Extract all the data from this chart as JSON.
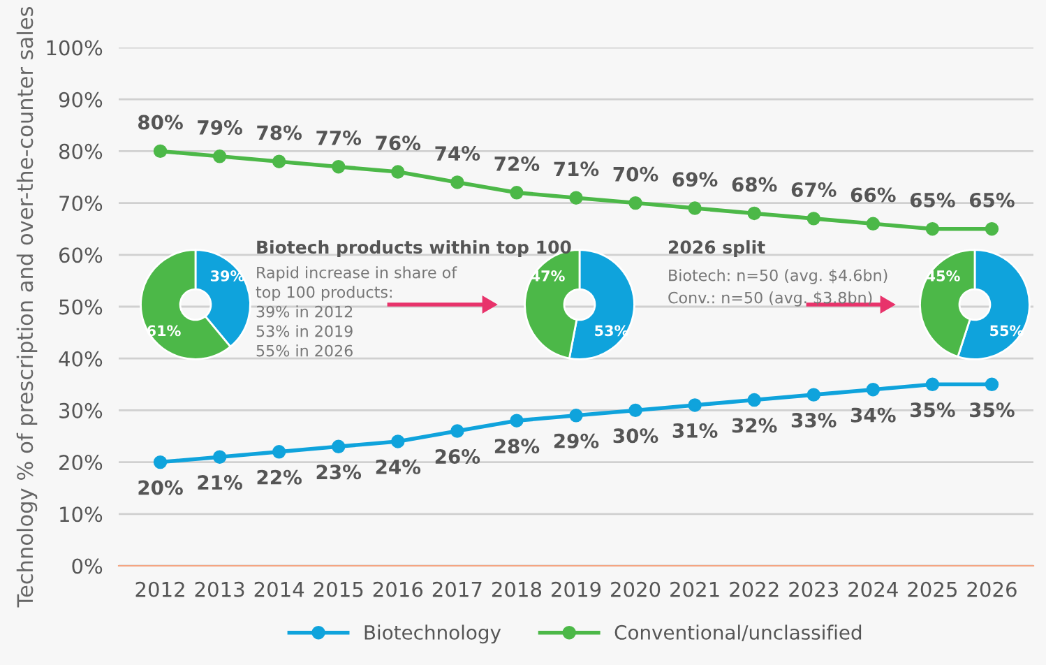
{
  "chart_data": [
    {
      "type": "line",
      "ylabel": "Technology % of prescription and over-the-counter sales",
      "categories": [
        "2012",
        "2013",
        "2014",
        "2015",
        "2016",
        "2017",
        "2018",
        "2019",
        "2020",
        "2021",
        "2022",
        "2023",
        "2024",
        "2025",
        "2026"
      ],
      "series": [
        {
          "name": "Biotechnology",
          "color": "#0fa3dc",
          "values": [
            20,
            21,
            22,
            23,
            24,
            26,
            28,
            29,
            30,
            31,
            32,
            33,
            34,
            35,
            35
          ],
          "value_labels": [
            "20%",
            "21%",
            "22%",
            "23%",
            "24%",
            "26%",
            "28%",
            "29%",
            "30%",
            "31%",
            "32%",
            "33%",
            "34%",
            "35%",
            "35%"
          ]
        },
        {
          "name": "Conventional/unclassified",
          "color": "#4cb848",
          "values": [
            80,
            79,
            78,
            77,
            76,
            74,
            72,
            71,
            70,
            69,
            68,
            67,
            66,
            65,
            65
          ],
          "value_labels": [
            "80%",
            "79%",
            "78%",
            "77%",
            "76%",
            "74%",
            "72%",
            "71%",
            "70%",
            "69%",
            "68%",
            "67%",
            "66%",
            "65%",
            "65%"
          ]
        }
      ],
      "ylim": [
        0,
        100
      ],
      "yticks": [
        {
          "value": 0,
          "label": "0%"
        },
        {
          "value": 10,
          "label": "10%"
        },
        {
          "value": 20,
          "label": "20%"
        },
        {
          "value": 30,
          "label": "30%"
        },
        {
          "value": 40,
          "label": "40%"
        },
        {
          "value": 50,
          "label": "50%"
        },
        {
          "value": 60,
          "label": "60%"
        },
        {
          "value": 70,
          "label": "70%"
        },
        {
          "value": 80,
          "label": "80%"
        },
        {
          "value": 90,
          "label": "90%"
        },
        {
          "value": 100,
          "label": "100%"
        }
      ],
      "grid": "y",
      "legend": "bottom",
      "marker": "circle",
      "line_style": "solid",
      "annotations": [
        "Biotech products within top 100",
        "Rapid increase in share of",
        "top 100 products:",
        "39% in 2012",
        "53% in 2019",
        "55% in 2026",
        "2026 split",
        "Biotech: n=50 (avg. $4.6bn)",
        "Conv.: n=50 (avg. $3.8bn)"
      ]
    },
    {
      "type": "donut",
      "categories": [
        null,
        null
      ],
      "values": [
        39,
        61
      ],
      "colors": [
        "#0fa3dc",
        "#4cb848"
      ],
      "value_labels": [
        "39%",
        "61%"
      ]
    },
    {
      "type": "donut",
      "categories": [
        null,
        null
      ],
      "values": [
        53,
        47
      ],
      "colors": [
        "#0fa3dc",
        "#4cb848"
      ],
      "value_labels": [
        "53%",
        "47%"
      ]
    },
    {
      "type": "donut",
      "categories": [
        null,
        null
      ],
      "values": [
        55,
        45
      ],
      "colors": [
        "#0fa3dc",
        "#4cb848"
      ],
      "value_labels": [
        "55%",
        "45%"
      ]
    }
  ]
}
